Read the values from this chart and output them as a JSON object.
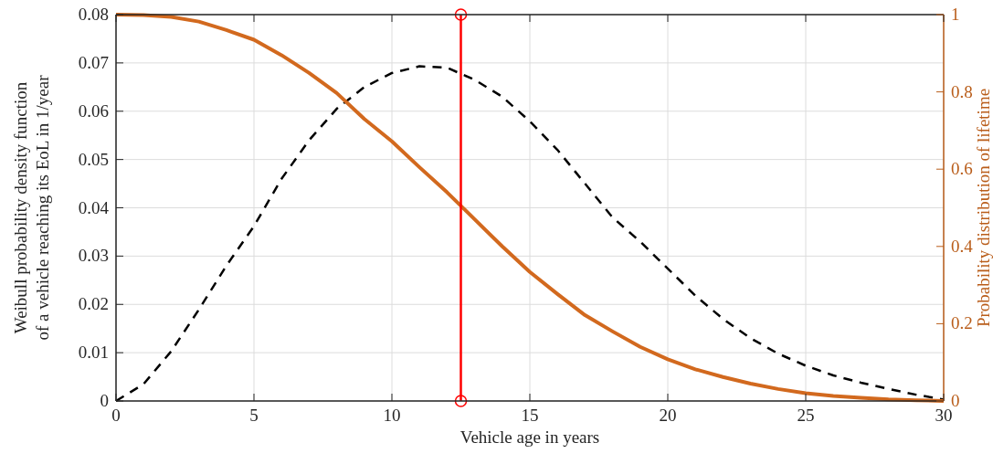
{
  "chart_data": {
    "type": "line",
    "xlabel": "Vehicle age in years",
    "ylabel": "Weibull probability density function\nof a vehicle reaching its EoL in 1/year",
    "y2label": "Probability distribution of lifetime",
    "x": [
      0,
      1,
      2,
      3,
      4,
      5,
      6,
      7,
      8,
      9,
      10,
      11,
      12,
      13,
      14,
      15,
      16,
      17,
      18,
      19,
      20,
      21,
      22,
      23,
      24,
      25,
      26,
      27,
      28,
      29,
      30
    ],
    "series": [
      {
        "color": "#000000",
        "line_style": "dashed",
        "marker": "none",
        "values": [
          0,
          0.0035,
          0.0103,
          0.0189,
          0.028,
          0.0362,
          0.046,
          0.054,
          0.0605,
          0.065,
          0.0679,
          0.0693,
          0.069,
          0.0665,
          0.063,
          0.0579,
          0.052,
          0.045,
          0.038,
          0.033,
          0.0274,
          0.0218,
          0.017,
          0.013,
          0.0098,
          0.0073,
          0.0053,
          0.0038,
          0.0025,
          0.0013,
          0.0003
        ]
      },
      {
        "color": "#d2691e",
        "axis": "y2",
        "line_style": "solid",
        "marker": "none",
        "values": [
          1,
          0.999,
          0.994,
          0.982,
          0.96,
          0.935,
          0.895,
          0.849,
          0.797,
          0.73,
          0.672,
          0.605,
          0.54,
          0.47,
          0.4,
          0.334,
          0.277,
          0.222,
          0.18,
          0.14,
          0.108,
          0.082,
          0.062,
          0.045,
          0.031,
          0.02,
          0.013,
          0.008,
          0.004,
          0.002,
          0
        ]
      },
      {
        "color": "#ff0000",
        "axis": "y2",
        "line_style": "solid",
        "marker": "circle",
        "x": [
          12.5,
          12.5
        ],
        "values": [
          0,
          1
        ]
      }
    ],
    "xlim": [
      0,
      30
    ],
    "xticks": [
      0,
      5,
      10,
      15,
      20,
      25,
      30
    ],
    "ylim": [
      0,
      0.08
    ],
    "yticks": [
      0,
      0.01,
      0.02,
      0.03,
      0.04,
      0.05,
      0.06,
      0.07,
      0.08
    ],
    "y2lim": [
      0,
      1
    ],
    "y2ticks": [
      0,
      0.2,
      0.4,
      0.6,
      0.8,
      1
    ],
    "grid": true
  }
}
